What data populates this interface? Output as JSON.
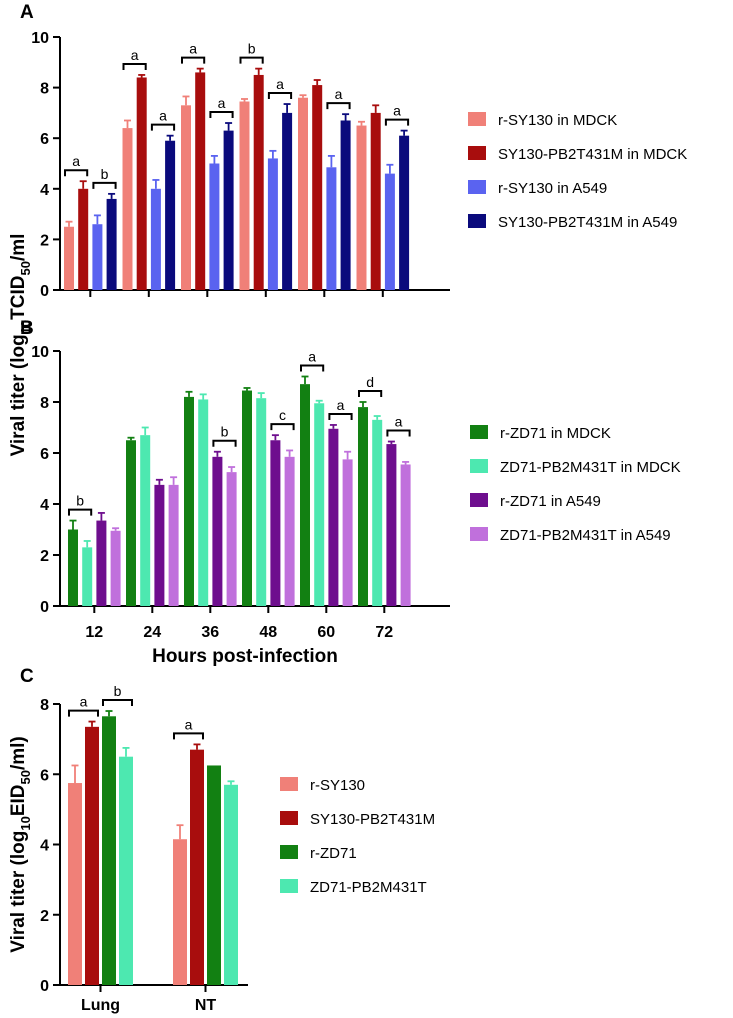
{
  "chart_data": [
    {
      "panel": "A",
      "type": "bar",
      "categories": [
        "12",
        "24",
        "36",
        "48",
        "60",
        "72"
      ],
      "ylabel_parts": [
        "Viral titer (log",
        "10",
        "TCID",
        "50",
        "/ml"
      ],
      "ylim": [
        0,
        10
      ],
      "yticks": [
        0,
        2,
        4,
        6,
        8,
        10
      ],
      "legend": "right",
      "series": [
        {
          "name": "r-SY130 in MDCK",
          "color": "#f08078",
          "values": [
            2.5,
            6.4,
            7.3,
            7.45,
            7.6,
            6.5
          ],
          "errors": [
            0.2,
            0.3,
            0.35,
            0.1,
            0.1,
            0.15
          ]
        },
        {
          "name": "SY130-PB2T431M in MDCK",
          "color": "#a80d0d",
          "values": [
            4.0,
            8.4,
            8.6,
            8.5,
            8.1,
            7.0
          ],
          "errors": [
            0.3,
            0.1,
            0.15,
            0.25,
            0.2,
            0.3
          ]
        },
        {
          "name": "r-SY130 in A549",
          "color": "#5a63f0",
          "values": [
            2.6,
            4.0,
            5.0,
            5.2,
            4.85,
            4.6
          ],
          "errors": [
            0.35,
            0.35,
            0.3,
            0.3,
            0.45,
            0.35
          ]
        },
        {
          "name": "SY130-PB2T431M in A549",
          "color": "#0a0a7c",
          "values": [
            3.6,
            5.9,
            6.3,
            7.0,
            6.7,
            6.1
          ],
          "errors": [
            0.2,
            0.2,
            0.3,
            0.35,
            0.25,
            0.2
          ]
        }
      ],
      "annotations": [
        {
          "group": 0,
          "pair": [
            0,
            1
          ],
          "label": "a"
        },
        {
          "group": 0,
          "pair": [
            2,
            3
          ],
          "label": "b"
        },
        {
          "group": 1,
          "pair": [
            0,
            1
          ],
          "label": "a"
        },
        {
          "group": 1,
          "pair": [
            2,
            3
          ],
          "label": "a"
        },
        {
          "group": 2,
          "pair": [
            0,
            1
          ],
          "label": "a"
        },
        {
          "group": 2,
          "pair": [
            2,
            3
          ],
          "label": "a"
        },
        {
          "group": 3,
          "pair": [
            0,
            1
          ],
          "label": "b"
        },
        {
          "group": 3,
          "pair": [
            2,
            3
          ],
          "label": "a"
        },
        {
          "group": 4,
          "pair": [
            2,
            3
          ],
          "label": "a"
        },
        {
          "group": 5,
          "pair": [
            2,
            3
          ],
          "label": "a"
        }
      ]
    },
    {
      "panel": "B",
      "type": "bar",
      "categories": [
        "12",
        "24",
        "36",
        "48",
        "60",
        "72"
      ],
      "xlabel": "Hours post-infection",
      "ylim": [
        0,
        10
      ],
      "yticks": [
        0,
        2,
        4,
        6,
        8,
        10
      ],
      "legend": "right",
      "series": [
        {
          "name": "r-ZD71 in MDCK",
          "color": "#128012",
          "values": [
            3.0,
            6.5,
            8.2,
            8.45,
            8.7,
            7.8
          ],
          "errors": [
            0.35,
            0.1,
            0.2,
            0.1,
            0.3,
            0.2
          ]
        },
        {
          "name": "ZD71-PB2M431T in MDCK",
          "color": "#4de8b0",
          "values": [
            2.3,
            6.7,
            8.1,
            8.15,
            7.95,
            7.3
          ],
          "errors": [
            0.25,
            0.3,
            0.2,
            0.2,
            0.1,
            0.15
          ]
        },
        {
          "name": "r-ZD71 in A549",
          "color": "#6e0e8e",
          "values": [
            3.35,
            4.75,
            5.85,
            6.5,
            6.95,
            6.35
          ],
          "errors": [
            0.3,
            0.2,
            0.2,
            0.2,
            0.15,
            0.1
          ]
        },
        {
          "name": "ZD71-PB2M431T in A549",
          "color": "#c070dc",
          "values": [
            2.95,
            4.75,
            5.25,
            5.85,
            5.75,
            5.55
          ],
          "errors": [
            0.1,
            0.3,
            0.2,
            0.25,
            0.3,
            0.1
          ]
        }
      ],
      "annotations": [
        {
          "group": 0,
          "pair": [
            0,
            1
          ],
          "label": "b"
        },
        {
          "group": 2,
          "pair": [
            2,
            3
          ],
          "label": "b"
        },
        {
          "group": 3,
          "pair": [
            2,
            3
          ],
          "label": "c"
        },
        {
          "group": 4,
          "pair": [
            0,
            1
          ],
          "label": "a"
        },
        {
          "group": 4,
          "pair": [
            2,
            3
          ],
          "label": "a"
        },
        {
          "group": 5,
          "pair": [
            0,
            1
          ],
          "label": "d"
        },
        {
          "group": 5,
          "pair": [
            2,
            3
          ],
          "label": "a"
        }
      ]
    },
    {
      "panel": "C",
      "type": "bar",
      "categories": [
        "Lung",
        "NT"
      ],
      "ylabel_parts": [
        "Viral titer (log",
        "10",
        "EID",
        "50",
        "/ml)"
      ],
      "ylim": [
        0,
        8
      ],
      "yticks": [
        0,
        2,
        4,
        6,
        8
      ],
      "legend": "right",
      "series": [
        {
          "name": "r-SY130",
          "color": "#f08078",
          "values": [
            5.75,
            4.15
          ],
          "errors": [
            0.5,
            0.4
          ]
        },
        {
          "name": "SY130-PB2T431M",
          "color": "#a80d0d",
          "values": [
            7.35,
            6.7
          ],
          "errors": [
            0.15,
            0.15
          ]
        },
        {
          "name": "r-ZD71",
          "color": "#128012",
          "values": [
            7.65,
            6.25
          ],
          "errors": [
            0.15,
            0.0
          ]
        },
        {
          "name": "ZD71-PB2M431T",
          "color": "#4de8b0",
          "values": [
            6.5,
            5.7
          ],
          "errors": [
            0.25,
            0.1
          ]
        }
      ],
      "annotations": [
        {
          "group": 0,
          "pair": [
            0,
            1
          ],
          "label": "a"
        },
        {
          "group": 0,
          "pair": [
            2,
            3
          ],
          "label": "b"
        },
        {
          "group": 1,
          "pair": [
            0,
            1
          ],
          "label": "a"
        }
      ]
    }
  ],
  "shared_ylabel": "Viral titer (log",
  "shared_ylabel_sub": "10",
  "shared_ylabel_rest": "TCID",
  "shared_ylabel_sub2": "50",
  "shared_ylabel_end": "/ml"
}
